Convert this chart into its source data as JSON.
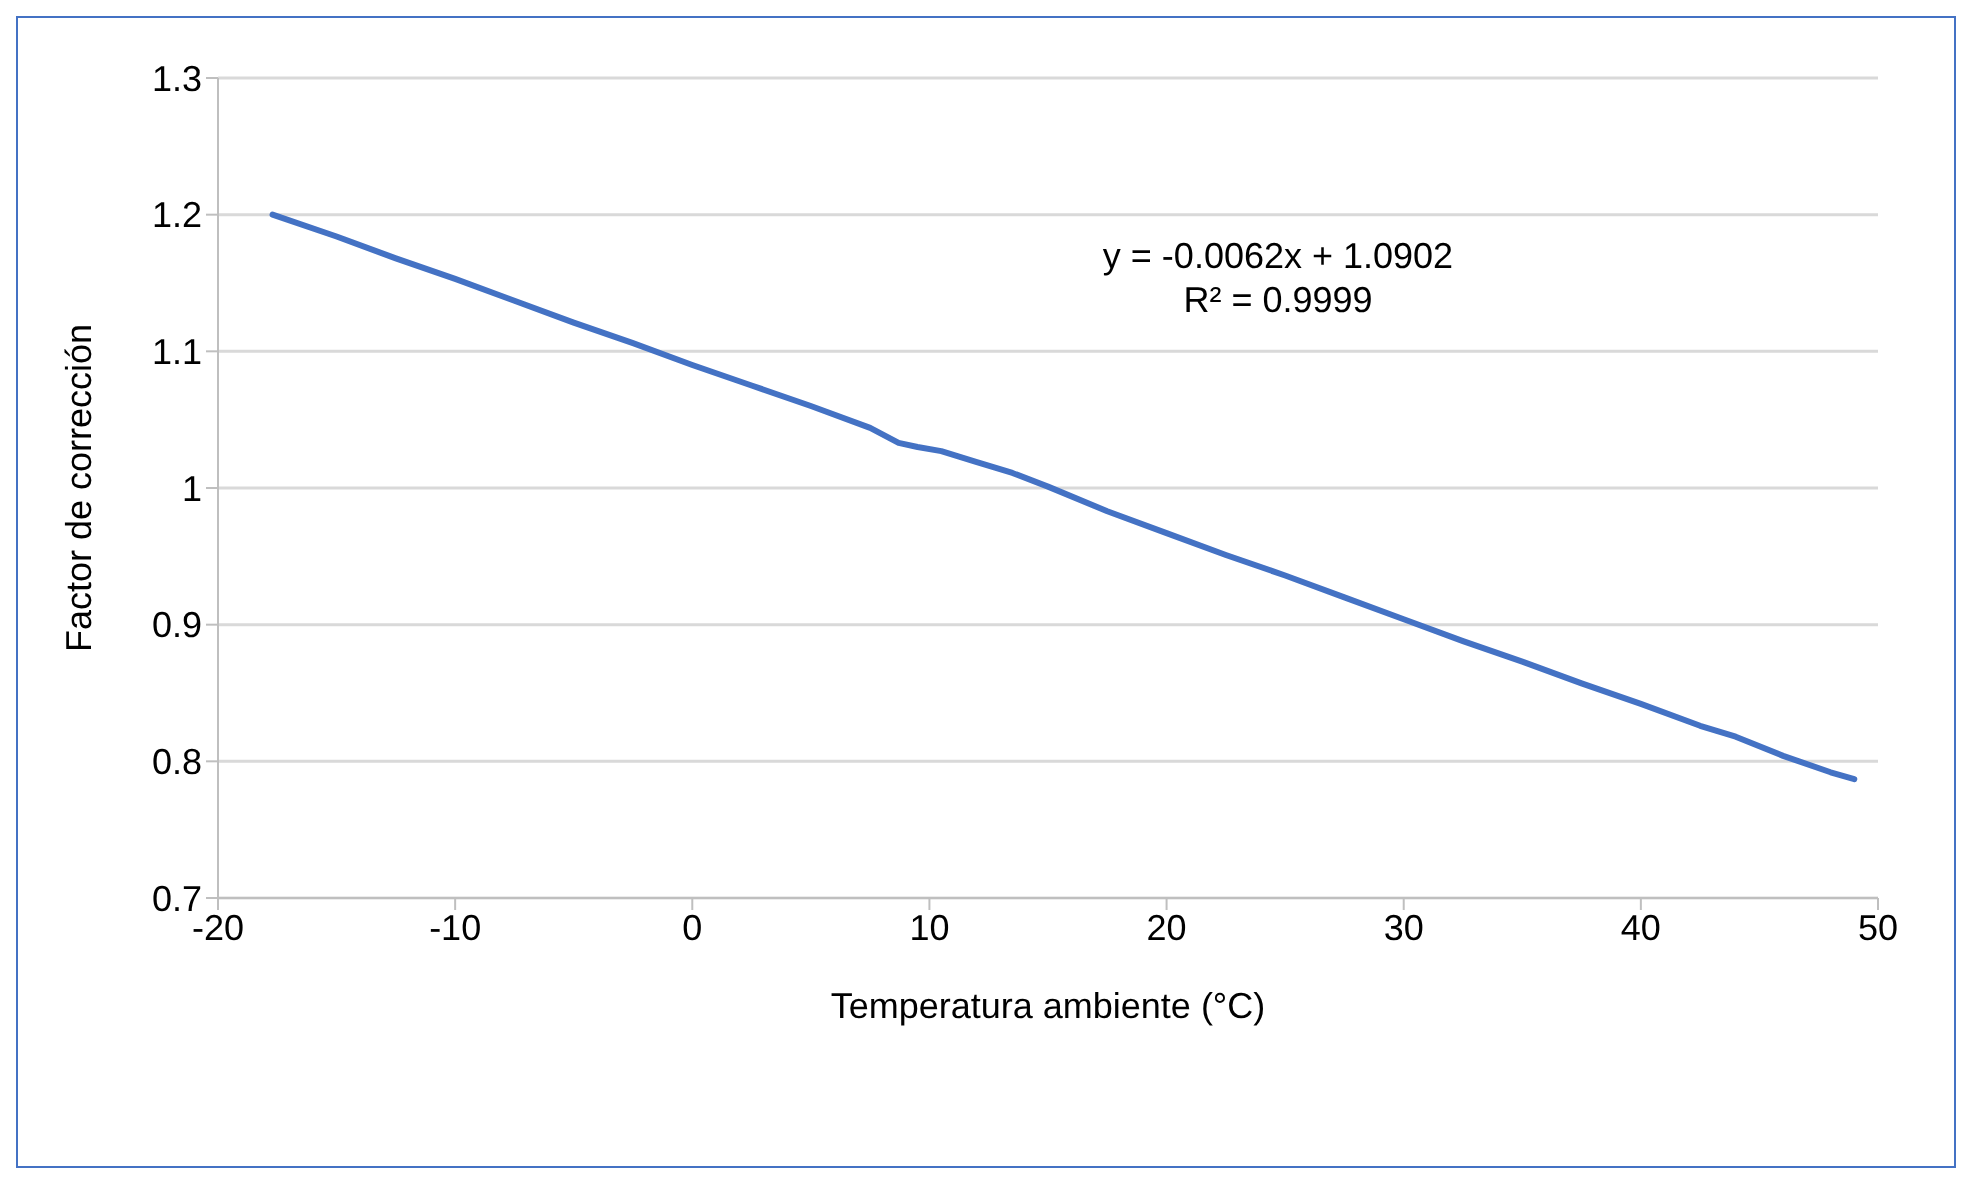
{
  "chart_data": {
    "type": "line",
    "xlabel": "Temperatura ambiente (°C)",
    "ylabel": "Factor de corrección",
    "annotations": [
      "y = -0.0062x + 1.0902",
      "R² = 0.9999"
    ],
    "series": [
      {
        "color": "#4472c4",
        "x": [
          -17.7,
          -15,
          -12.5,
          -10,
          -7.5,
          -5,
          -2.5,
          0,
          2.5,
          5,
          7.5,
          8.7,
          9.5,
          10.5,
          12,
          13.5,
          15,
          17.5,
          20,
          22.5,
          25,
          27.5,
          30,
          32.5,
          35,
          37.5,
          40,
          42.5,
          44,
          46,
          48,
          49
        ],
        "values": [
          1.2,
          1.184,
          1.168,
          1.153,
          1.137,
          1.121,
          1.106,
          1.09,
          1.075,
          1.06,
          1.044,
          1.033,
          1.03,
          1.027,
          1.019,
          1.011,
          1.001,
          0.983,
          0.967,
          0.951,
          0.936,
          0.92,
          0.904,
          0.888,
          0.873,
          0.857,
          0.842,
          0.826,
          0.818,
          0.804,
          0.792,
          0.787
        ]
      }
    ],
    "xlim": [
      -20,
      50
    ],
    "xticks": [
      -20,
      -10,
      0,
      10,
      20,
      30,
      40,
      50
    ],
    "ylim": [
      0.7,
      1.3
    ],
    "yticks": [
      0.7,
      0.8,
      0.9,
      1,
      1.1,
      1.2,
      1.3
    ],
    "grid": "y",
    "legend": false,
    "marker": "none",
    "line_style": "solid"
  }
}
